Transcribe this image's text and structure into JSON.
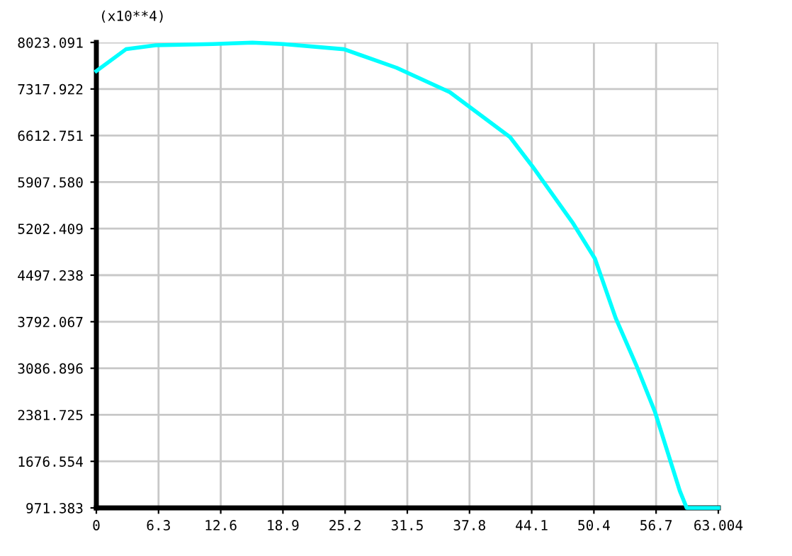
{
  "chart_data": {
    "type": "line",
    "ylabel": "(x10**4)",
    "x": [
      0,
      3.0,
      6.0,
      11.8,
      15.8,
      18.9,
      25.1,
      30.4,
      35.8,
      41.9,
      44.2,
      48.3,
      50.5,
      52.6,
      54.7,
      56.6,
      59.1,
      59.8,
      63.004
    ],
    "series": [
      {
        "color": "#00ffff",
        "values": [
          7590,
          7920,
          7980,
          8000,
          8020,
          8000,
          7920,
          7640,
          7270,
          6590,
          6140,
          5280,
          4750,
          3850,
          3130,
          2420,
          1230,
          971.383,
          971.383
        ]
      }
    ],
    "xlim": [
      0,
      63.004
    ],
    "xticks": [
      0,
      6.3,
      12.6,
      18.9,
      25.2,
      31.5,
      37.8,
      44.1,
      50.4,
      56.7,
      63.004
    ],
    "ylim": [
      971.383,
      8023.091
    ],
    "yticks": [
      971.383,
      1676.554,
      2381.725,
      3086.896,
      3792.067,
      4497.238,
      5202.409,
      {
        "value": 5907.58,
        "label": "5907.580"
      },
      6612.751,
      7317.922,
      8023.091
    ],
    "grid": true,
    "marker": "none",
    "line_style": "solid"
  }
}
